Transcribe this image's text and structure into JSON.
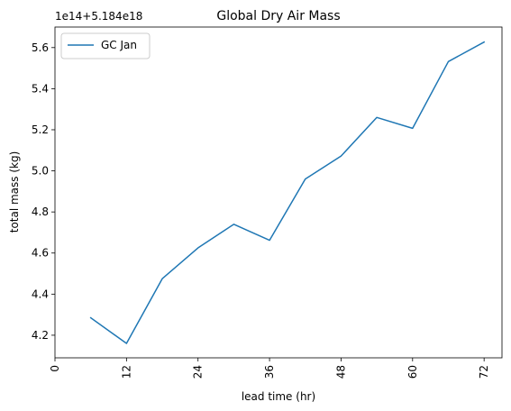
{
  "chart_data": {
    "type": "line",
    "title": "Global Dry Air Mass",
    "xlabel": "lead time (hr)",
    "ylabel": "total mass (kg)",
    "y_offset_label": "1e14+5.184e18",
    "xlim": [
      0,
      75
    ],
    "ylim": [
      4.09,
      5.7
    ],
    "x_ticks": [
      0,
      12,
      24,
      36,
      48,
      60,
      72
    ],
    "x_tick_labels": [
      "0",
      "12",
      "24",
      "36",
      "48",
      "60",
      "72"
    ],
    "y_ticks": [
      4.2,
      4.4,
      4.6,
      4.8,
      5.0,
      5.2,
      5.4,
      5.6
    ],
    "y_tick_labels": [
      "4.2",
      "4.4",
      "4.6",
      "4.8",
      "5.0",
      "5.2",
      "5.4",
      "5.6"
    ],
    "legend_position": "top-left",
    "grid": false,
    "series": [
      {
        "name": "GC Jan",
        "color": "#1f77b4",
        "x": [
          6,
          12,
          18,
          24,
          30,
          36,
          42,
          48,
          54,
          60,
          66,
          72
        ],
        "y": [
          4.285,
          4.16,
          4.475,
          4.625,
          4.74,
          4.662,
          4.96,
          5.072,
          5.26,
          5.207,
          5.532,
          5.627
        ]
      }
    ]
  }
}
